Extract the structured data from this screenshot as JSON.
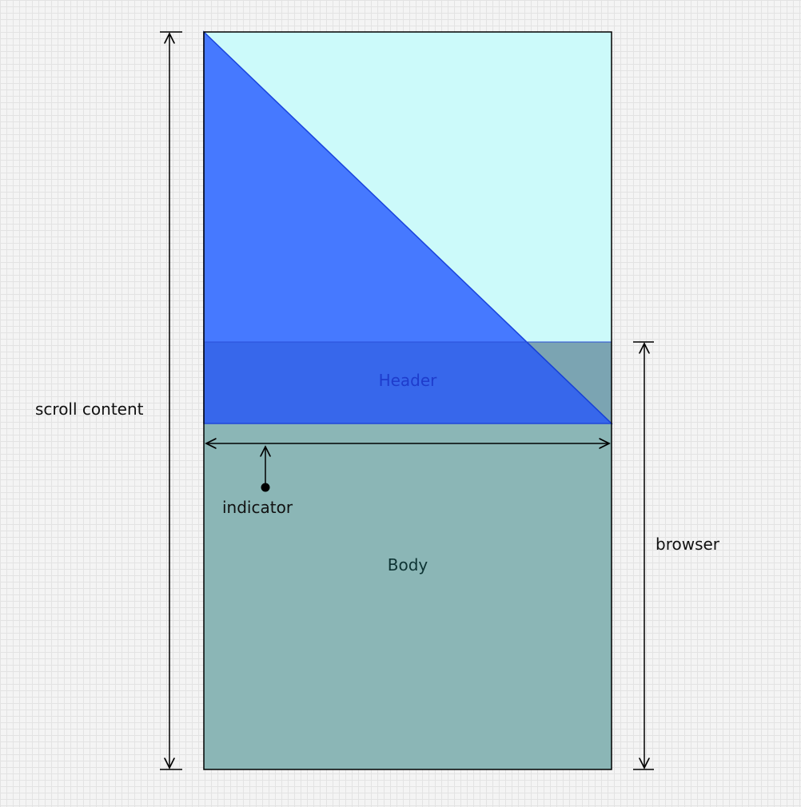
{
  "labels": {
    "scroll_content": "scroll content",
    "browser": "browser",
    "header": "Header",
    "body": "Body",
    "indicator": "indicator"
  },
  "colors": {
    "scroll_area": "#ccfafa",
    "browser_area": "#8bb6b6",
    "triangle_fill": "#3366ff",
    "triangle_stroke": "#1a44dd",
    "header_text": "#1e3ccc",
    "body_text": "#0d3333",
    "line": "#000000"
  }
}
